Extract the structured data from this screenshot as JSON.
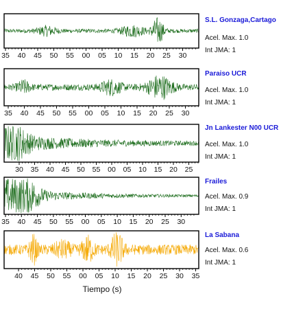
{
  "chart_data": [
    {
      "type": "line",
      "station": "S.L. Gonzaga,Cartago",
      "acel_label": "Acel. Max. 1.0",
      "jma_label": "Int JMA: 1",
      "color": "#1a6b1a",
      "x_ticks": [
        "35",
        "40",
        "45",
        "50",
        "55",
        "00",
        "05",
        "10",
        "15",
        "20",
        "25",
        "30"
      ],
      "features": {
        "baseline": 0.12,
        "bursts": [
          {
            "t": 0.79,
            "amp": 0.75,
            "w": 0.03
          },
          {
            "t": 0.66,
            "amp": 0.3,
            "w": 0.06
          },
          {
            "t": 0.22,
            "amp": 0.25,
            "w": 0.05
          }
        ],
        "decay": 0
      }
    },
    {
      "type": "line",
      "station": "Paraiso UCR",
      "acel_label": "Acel. Max. 1.0",
      "jma_label": "Int JMA: 1",
      "color": "#1a6b1a",
      "x_ticks": [
        "35",
        "40",
        "45",
        "50",
        "55",
        "00",
        "05",
        "10",
        "15",
        "20",
        "25",
        "30"
      ],
      "features": {
        "baseline": 0.18,
        "bursts": [
          {
            "t": 0.8,
            "amp": 0.6,
            "w": 0.06
          },
          {
            "t": 0.55,
            "amp": 0.35,
            "w": 0.05
          },
          {
            "t": 0.1,
            "amp": 0.3,
            "w": 0.03
          }
        ],
        "decay": 0
      }
    },
    {
      "type": "line",
      "station": "Jn Lankester N00 UCR",
      "acel_label": "Acel. Max. 1.0",
      "jma_label": "Int JMA: 1",
      "color": "#1a6b1a",
      "x_ticks": [
        "30",
        "35",
        "40",
        "45",
        "50",
        "55",
        "00",
        "05",
        "10",
        "15",
        "20",
        "25"
      ],
      "features": {
        "baseline": 0.1,
        "bursts": [
          {
            "t": 0.03,
            "amp": 0.85,
            "w": 0.08
          }
        ],
        "decay": 2.8
      }
    },
    {
      "type": "line",
      "station": "Frailes",
      "acel_label": "Acel. Max. 0.9",
      "jma_label": "Int JMA: 1",
      "color": "#1a6b1a",
      "x_ticks": [
        "35",
        "40",
        "45",
        "50",
        "55",
        "00",
        "05",
        "10",
        "15",
        "20",
        "25",
        "30"
      ],
      "features": {
        "baseline": 0.06,
        "bursts": [
          {
            "t": 0.03,
            "amp": 0.8,
            "w": 0.06
          },
          {
            "t": 0.12,
            "amp": 0.7,
            "w": 0.06
          }
        ],
        "decay": 3.4
      }
    },
    {
      "type": "line",
      "station": "La Sabana",
      "acel_label": "Acel. Max. 0.6",
      "jma_label": "Int JMA: 1",
      "color": "#f5a800",
      "x_ticks": [
        "40",
        "45",
        "50",
        "55",
        "00",
        "05",
        "10",
        "15",
        "20",
        "25",
        "30",
        "35"
      ],
      "features": {
        "baseline": 0.28,
        "bursts": [
          {
            "t": 0.15,
            "amp": 0.65,
            "w": 0.02
          },
          {
            "t": 0.43,
            "amp": 0.6,
            "w": 0.03
          },
          {
            "t": 0.58,
            "amp": 0.85,
            "w": 0.03
          },
          {
            "t": 0.3,
            "amp": 0.35,
            "w": 0.04
          }
        ],
        "decay": 0
      }
    }
  ],
  "xlabel": "Tiempo (s)"
}
